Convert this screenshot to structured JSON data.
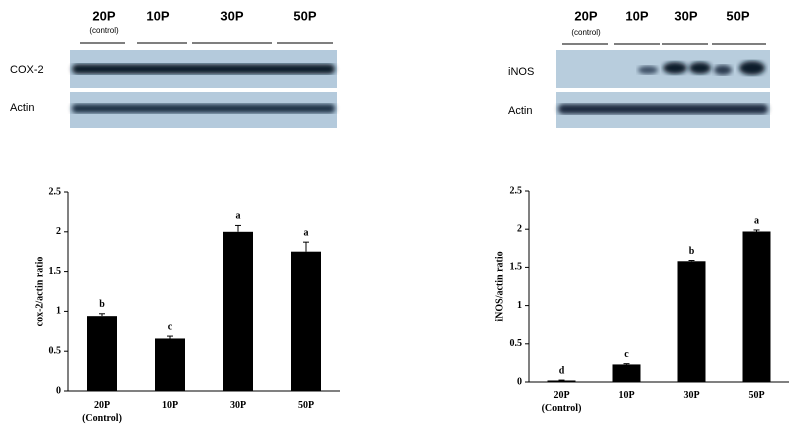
{
  "blots": [
    {
      "lanes": [
        "20P",
        "10P",
        "30P",
        "50P"
      ],
      "sublabel": "(control)",
      "rows": [
        "COX-2",
        "Actin"
      ]
    },
    {
      "lanes": [
        "20P",
        "10P",
        "30P",
        "50P"
      ],
      "sublabel": "(control)",
      "rows": [
        "iNOS",
        "Actin"
      ]
    }
  ],
  "chart_data": [
    {
      "type": "bar",
      "y_label": "cox-2/actin ratio",
      "categories": [
        "20P\n(Control)",
        "10P",
        "30P",
        "50P"
      ],
      "values": [
        0.94,
        0.66,
        2.0,
        1.75
      ],
      "errors": [
        0.03,
        0.03,
        0.08,
        0.12
      ],
      "annotations": [
        "b",
        "c",
        "a",
        "a"
      ],
      "color": "#000000",
      "ylim": [
        0,
        2.5
      ],
      "yticks": [
        0,
        0.5,
        1,
        1.5,
        2,
        2.5
      ]
    },
    {
      "type": "bar",
      "y_label": "iNOS/actin ratio",
      "categories": [
        "20P\n(Control)",
        "10P",
        "30P",
        "50P"
      ],
      "values": [
        0.02,
        0.23,
        1.58,
        1.97
      ],
      "errors": [
        0.005,
        0.01,
        0.01,
        0.02
      ],
      "annotations": [
        "d",
        "c",
        "b",
        "a"
      ],
      "color": "#000000",
      "ylim": [
        0,
        2.5
      ],
      "yticks": [
        0,
        0.5,
        1,
        1.5,
        2,
        2.5
      ]
    }
  ]
}
